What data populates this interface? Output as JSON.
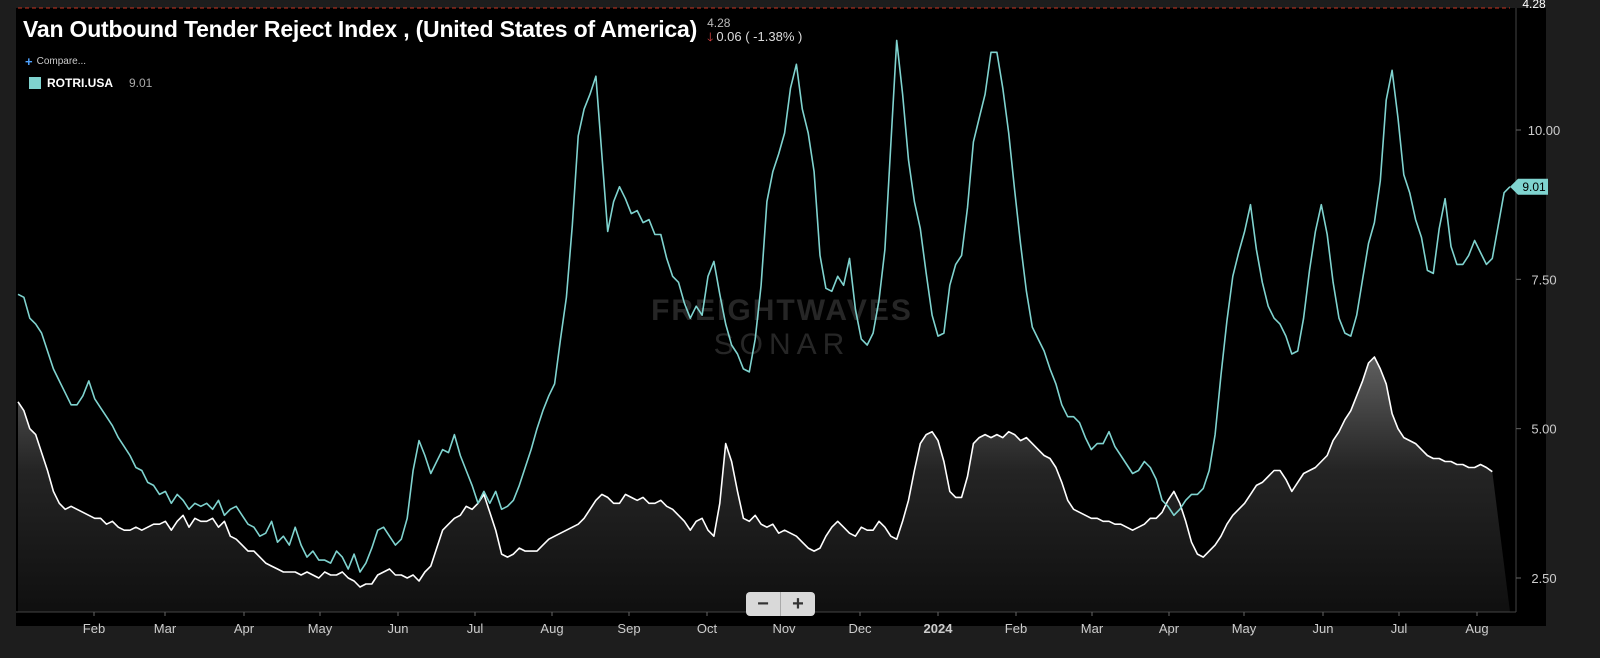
{
  "title": "Van Outbound Tender Reject Index , (United States of America)",
  "header_last": "4.28",
  "header_change": "0.06 ( -1.38% )",
  "compare_label": "Compare...",
  "legend": {
    "name": "ROTRI.USA",
    "value": "9.01"
  },
  "watermark": {
    "line1": "FREIGHTWAVES",
    "line2": "SONAR"
  },
  "zoom": {
    "minus": "−",
    "plus": "+"
  },
  "chart_data": {
    "type": "line",
    "x_tick_labels": [
      "Feb",
      "Mar",
      "Apr",
      "May",
      "Jun",
      "Jul",
      "Aug",
      "Sep",
      "Oct",
      "Nov",
      "Dec",
      "2024",
      "Feb",
      "Mar",
      "Apr",
      "May",
      "Jun",
      "Jul",
      "Aug"
    ],
    "y_tick_labels": [
      "10.00",
      "7.50",
      "5.00",
      "2.50"
    ],
    "ylim": [
      2.2,
      12.0
    ],
    "colors": {
      "series_teal": "#7fd3cf",
      "series_white": "#ffffff",
      "last_marker": "#c8321f"
    },
    "series": [
      {
        "name": "ROTRI.USA",
        "last_value_label": "9.01",
        "values": [
          7.25,
          7.2,
          6.85,
          6.75,
          6.6,
          6.3,
          6.0,
          5.8,
          5.6,
          5.4,
          5.4,
          5.55,
          5.8,
          5.5,
          5.35,
          5.2,
          5.05,
          4.85,
          4.7,
          4.55,
          4.35,
          4.3,
          4.1,
          4.05,
          3.9,
          3.95,
          3.75,
          3.9,
          3.8,
          3.65,
          3.75,
          3.7,
          3.75,
          3.65,
          3.8,
          3.55,
          3.65,
          3.7,
          3.55,
          3.4,
          3.35,
          3.2,
          3.25,
          3.45,
          3.1,
          3.2,
          3.05,
          3.35,
          3.05,
          2.85,
          2.95,
          2.8,
          2.8,
          2.75,
          2.95,
          2.85,
          2.65,
          2.9,
          2.6,
          2.75,
          3.0,
          3.3,
          3.35,
          3.2,
          3.05,
          3.15,
          3.5,
          4.3,
          4.8,
          4.55,
          4.25,
          4.45,
          4.65,
          4.6,
          4.9,
          4.55,
          4.3,
          4.05,
          3.75,
          3.95,
          3.75,
          3.95,
          3.65,
          3.7,
          3.8,
          4.05,
          4.35,
          4.65,
          5.0,
          5.3,
          5.55,
          5.75,
          6.5,
          7.2,
          8.4,
          9.9,
          10.35,
          10.6,
          10.9,
          9.6,
          8.3,
          8.8,
          9.05,
          8.85,
          8.6,
          8.65,
          8.45,
          8.5,
          8.25,
          8.25,
          7.85,
          7.55,
          7.45,
          7.1,
          6.85,
          7.05,
          6.9,
          7.55,
          7.8,
          7.25,
          6.75,
          6.4,
          6.25,
          6.0,
          5.95,
          6.5,
          7.4,
          8.8,
          9.3,
          9.6,
          9.95,
          10.7,
          11.1,
          10.35,
          9.95,
          9.3,
          7.9,
          7.35,
          7.3,
          7.55,
          7.4,
          7.85,
          7.0,
          6.5,
          6.4,
          6.6,
          7.15,
          8.0,
          9.75,
          11.5,
          10.6,
          9.5,
          8.8,
          8.35,
          7.6,
          6.9,
          6.55,
          6.6,
          7.4,
          7.75,
          7.9,
          8.7,
          9.8,
          10.2,
          10.6,
          11.3,
          11.3,
          10.7,
          9.95,
          9.0,
          8.1,
          7.3,
          6.7,
          6.5,
          6.3,
          6.0,
          5.75,
          5.4,
          5.2,
          5.2,
          5.1,
          4.85,
          4.65,
          4.75,
          4.75,
          4.95,
          4.7,
          4.55,
          4.4,
          4.25,
          4.3,
          4.45,
          4.35,
          4.15,
          3.8,
          3.7,
          3.55,
          3.65,
          3.8,
          3.9,
          3.9,
          4.0,
          4.3,
          4.9,
          5.9,
          6.8,
          7.55,
          7.95,
          8.3,
          8.75,
          8.0,
          7.45,
          7.05,
          6.85,
          6.75,
          6.55,
          6.25,
          6.3,
          6.85,
          7.65,
          8.3,
          8.75,
          8.25,
          7.45,
          6.85,
          6.6,
          6.55,
          6.9,
          7.5,
          8.1,
          8.45,
          9.15,
          10.5,
          11.0,
          10.2,
          9.25,
          8.95,
          8.5,
          8.2,
          7.65,
          7.6,
          8.35,
          8.85,
          8.05,
          7.75,
          7.75,
          7.9,
          8.15,
          7.95,
          7.75,
          7.85,
          8.4,
          8.95,
          9.05
        ]
      },
      {
        "name": "",
        "last_value_label": "4.28",
        "values": [
          5.45,
          5.3,
          5.0,
          4.9,
          4.6,
          4.3,
          3.95,
          3.75,
          3.65,
          3.7,
          3.65,
          3.6,
          3.55,
          3.5,
          3.5,
          3.4,
          3.45,
          3.35,
          3.3,
          3.3,
          3.35,
          3.3,
          3.35,
          3.4,
          3.4,
          3.45,
          3.3,
          3.45,
          3.55,
          3.35,
          3.5,
          3.45,
          3.45,
          3.5,
          3.35,
          3.45,
          3.2,
          3.15,
          3.05,
          2.95,
          2.95,
          2.85,
          2.75,
          2.7,
          2.65,
          2.6,
          2.6,
          2.6,
          2.55,
          2.6,
          2.55,
          2.5,
          2.6,
          2.55,
          2.55,
          2.6,
          2.5,
          2.45,
          2.35,
          2.4,
          2.4,
          2.55,
          2.6,
          2.65,
          2.55,
          2.55,
          2.5,
          2.55,
          2.45,
          2.6,
          2.7,
          3.0,
          3.3,
          3.4,
          3.5,
          3.55,
          3.7,
          3.65,
          3.75,
          3.9,
          3.6,
          3.3,
          2.9,
          2.85,
          2.9,
          3.0,
          2.95,
          2.95,
          2.95,
          3.05,
          3.15,
          3.2,
          3.25,
          3.3,
          3.35,
          3.4,
          3.5,
          3.65,
          3.8,
          3.9,
          3.85,
          3.75,
          3.75,
          3.9,
          3.85,
          3.8,
          3.85,
          3.75,
          3.75,
          3.8,
          3.7,
          3.65,
          3.55,
          3.45,
          3.3,
          3.45,
          3.5,
          3.3,
          3.2,
          3.75,
          4.75,
          4.45,
          3.95,
          3.5,
          3.45,
          3.55,
          3.4,
          3.35,
          3.4,
          3.25,
          3.3,
          3.25,
          3.2,
          3.1,
          3.0,
          2.95,
          3.0,
          3.2,
          3.35,
          3.45,
          3.35,
          3.25,
          3.2,
          3.35,
          3.3,
          3.3,
          3.45,
          3.35,
          3.2,
          3.15,
          3.45,
          3.8,
          4.3,
          4.75,
          4.9,
          4.95,
          4.8,
          4.45,
          3.95,
          3.85,
          3.85,
          4.2,
          4.75,
          4.85,
          4.9,
          4.85,
          4.9,
          4.85,
          4.95,
          4.9,
          4.8,
          4.85,
          4.75,
          4.65,
          4.55,
          4.5,
          4.35,
          4.1,
          3.8,
          3.65,
          3.6,
          3.55,
          3.5,
          3.5,
          3.45,
          3.45,
          3.4,
          3.4,
          3.35,
          3.3,
          3.35,
          3.4,
          3.5,
          3.5,
          3.6,
          3.8,
          3.95,
          3.75,
          3.45,
          3.1,
          2.9,
          2.85,
          2.95,
          3.05,
          3.2,
          3.4,
          3.55,
          3.65,
          3.75,
          3.9,
          4.05,
          4.1,
          4.2,
          4.3,
          4.3,
          4.15,
          3.95,
          4.1,
          4.25,
          4.3,
          4.35,
          4.45,
          4.55,
          4.8,
          4.95,
          5.15,
          5.3,
          5.55,
          5.8,
          6.1,
          6.2,
          6.0,
          5.75,
          5.25,
          5.0,
          4.85,
          4.8,
          4.75,
          4.65,
          4.55,
          4.5,
          4.5,
          4.45,
          4.45,
          4.4,
          4.4,
          4.35,
          4.35,
          4.4,
          4.35,
          4.28
        ]
      }
    ]
  }
}
